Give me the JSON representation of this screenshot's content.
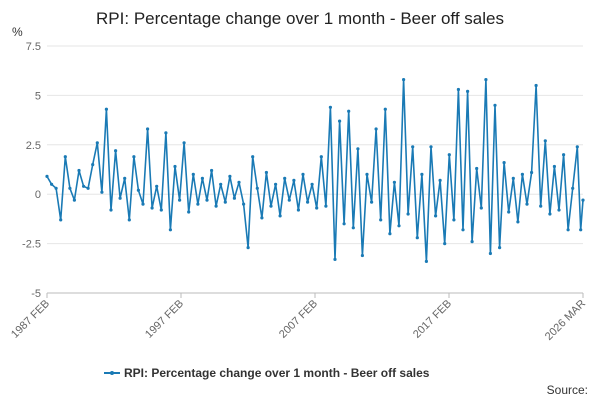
{
  "chart_data": {
    "type": "line",
    "title": "RPI: Percentage change over 1 month - Beer off sales",
    "unit_label": "%",
    "ylim": [
      -5,
      7.5
    ],
    "y_ticks": [
      "7.5",
      "5",
      "2.5",
      "0",
      "-2.5",
      "-5"
    ],
    "x_ticks": [
      "1987 FEB",
      "1997 FEB",
      "2007 FEB",
      "2017 FEB",
      "2026 MAR"
    ],
    "x_range": [
      "1987-02",
      "2026-03"
    ],
    "grid": true,
    "legend_position": "bottom",
    "color": "#1a7ab5",
    "series": [
      {
        "name": "RPI: Percentage change over 1 month - Beer off sales",
        "points": [
          [
            "1987-02",
            0.9
          ],
          [
            "1987-06",
            0.5
          ],
          [
            "1987-10",
            0.3
          ],
          [
            "1988-02",
            -1.3
          ],
          [
            "1988-06",
            1.9
          ],
          [
            "1988-10",
            0.3
          ],
          [
            "1989-02",
            -0.3
          ],
          [
            "1989-06",
            1.2
          ],
          [
            "1989-10",
            0.4
          ],
          [
            "1990-02",
            0.3
          ],
          [
            "1990-06",
            1.5
          ],
          [
            "1990-10",
            2.6
          ],
          [
            "1991-02",
            0.1
          ],
          [
            "1991-06",
            4.3
          ],
          [
            "1991-10",
            -0.8
          ],
          [
            "1992-02",
            2.2
          ],
          [
            "1992-06",
            -0.2
          ],
          [
            "1992-10",
            0.8
          ],
          [
            "1993-02",
            -1.3
          ],
          [
            "1993-06",
            1.9
          ],
          [
            "1993-10",
            0.2
          ],
          [
            "1994-02",
            -0.5
          ],
          [
            "1994-06",
            3.3
          ],
          [
            "1994-10",
            -0.7
          ],
          [
            "1995-02",
            0.4
          ],
          [
            "1995-06",
            -0.8
          ],
          [
            "1995-10",
            3.1
          ],
          [
            "1996-02",
            -1.8
          ],
          [
            "1996-06",
            1.4
          ],
          [
            "1996-10",
            -0.3
          ],
          [
            "1997-02",
            2.6
          ],
          [
            "1997-06",
            -0.9
          ],
          [
            "1997-10",
            1.0
          ],
          [
            "1998-02",
            -0.5
          ],
          [
            "1998-06",
            0.8
          ],
          [
            "1998-10",
            -0.3
          ],
          [
            "1999-02",
            1.2
          ],
          [
            "1999-06",
            -0.6
          ],
          [
            "1999-10",
            0.5
          ],
          [
            "2000-02",
            -0.4
          ],
          [
            "2000-06",
            0.9
          ],
          [
            "2000-10",
            -0.2
          ],
          [
            "2001-02",
            0.6
          ],
          [
            "2001-06",
            -0.5
          ],
          [
            "2001-10",
            -2.7
          ],
          [
            "2002-02",
            1.9
          ],
          [
            "2002-06",
            0.3
          ],
          [
            "2002-10",
            -1.2
          ],
          [
            "2003-02",
            1.1
          ],
          [
            "2003-06",
            -0.6
          ],
          [
            "2003-10",
            0.5
          ],
          [
            "2004-02",
            -1.1
          ],
          [
            "2004-06",
            0.8
          ],
          [
            "2004-10",
            -0.3
          ],
          [
            "2005-02",
            0.7
          ],
          [
            "2005-06",
            -0.8
          ],
          [
            "2005-10",
            1.0
          ],
          [
            "2006-02",
            -0.4
          ],
          [
            "2006-06",
            0.5
          ],
          [
            "2006-10",
            -0.7
          ],
          [
            "2007-02",
            1.9
          ],
          [
            "2007-06",
            -0.6
          ],
          [
            "2007-10",
            4.4
          ],
          [
            "2008-02",
            -3.3
          ],
          [
            "2008-06",
            3.7
          ],
          [
            "2008-10",
            -1.5
          ],
          [
            "2009-02",
            4.2
          ],
          [
            "2009-06",
            -1.7
          ],
          [
            "2009-10",
            2.3
          ],
          [
            "2010-02",
            -3.1
          ],
          [
            "2010-06",
            1.0
          ],
          [
            "2010-10",
            -0.4
          ],
          [
            "2011-02",
            3.3
          ],
          [
            "2011-06",
            -1.3
          ],
          [
            "2011-10",
            4.3
          ],
          [
            "2012-02",
            -2.0
          ],
          [
            "2012-06",
            0.6
          ],
          [
            "2012-10",
            -1.6
          ],
          [
            "2013-02",
            5.8
          ],
          [
            "2013-06",
            -1.0
          ],
          [
            "2013-10",
            2.4
          ],
          [
            "2014-02",
            -2.2
          ],
          [
            "2014-06",
            1.0
          ],
          [
            "2014-10",
            -3.4
          ],
          [
            "2015-02",
            2.4
          ],
          [
            "2015-06",
            -1.1
          ],
          [
            "2015-10",
            0.7
          ],
          [
            "2016-02",
            -2.5
          ],
          [
            "2016-06",
            2.0
          ],
          [
            "2016-10",
            -1.3
          ],
          [
            "2017-02",
            5.3
          ],
          [
            "2017-06",
            -1.8
          ],
          [
            "2017-10",
            5.2
          ],
          [
            "2018-02",
            -2.4
          ],
          [
            "2018-06",
            1.3
          ],
          [
            "2018-10",
            -0.7
          ],
          [
            "2019-02",
            5.8
          ],
          [
            "2019-06",
            -3.0
          ],
          [
            "2019-10",
            4.5
          ],
          [
            "2020-02",
            -2.7
          ],
          [
            "2020-06",
            1.6
          ],
          [
            "2020-10",
            -0.9
          ],
          [
            "2021-02",
            0.8
          ],
          [
            "2021-06",
            -1.4
          ],
          [
            "2021-10",
            1.0
          ],
          [
            "2022-02",
            -0.5
          ],
          [
            "2022-06",
            1.1
          ],
          [
            "2022-10",
            5.5
          ],
          [
            "2023-02",
            -0.6
          ],
          [
            "2023-06",
            2.7
          ],
          [
            "2023-10",
            -1.0
          ],
          [
            "2024-02",
            1.4
          ],
          [
            "2024-06",
            -0.8
          ],
          [
            "2024-10",
            2.0
          ],
          [
            "2025-02",
            -1.8
          ],
          [
            "2025-06",
            0.3
          ],
          [
            "2025-10",
            2.4
          ],
          [
            "2026-01",
            -1.8
          ],
          [
            "2026-03",
            -0.3
          ]
        ]
      }
    ]
  },
  "footer": {
    "source_label": "Source:"
  }
}
